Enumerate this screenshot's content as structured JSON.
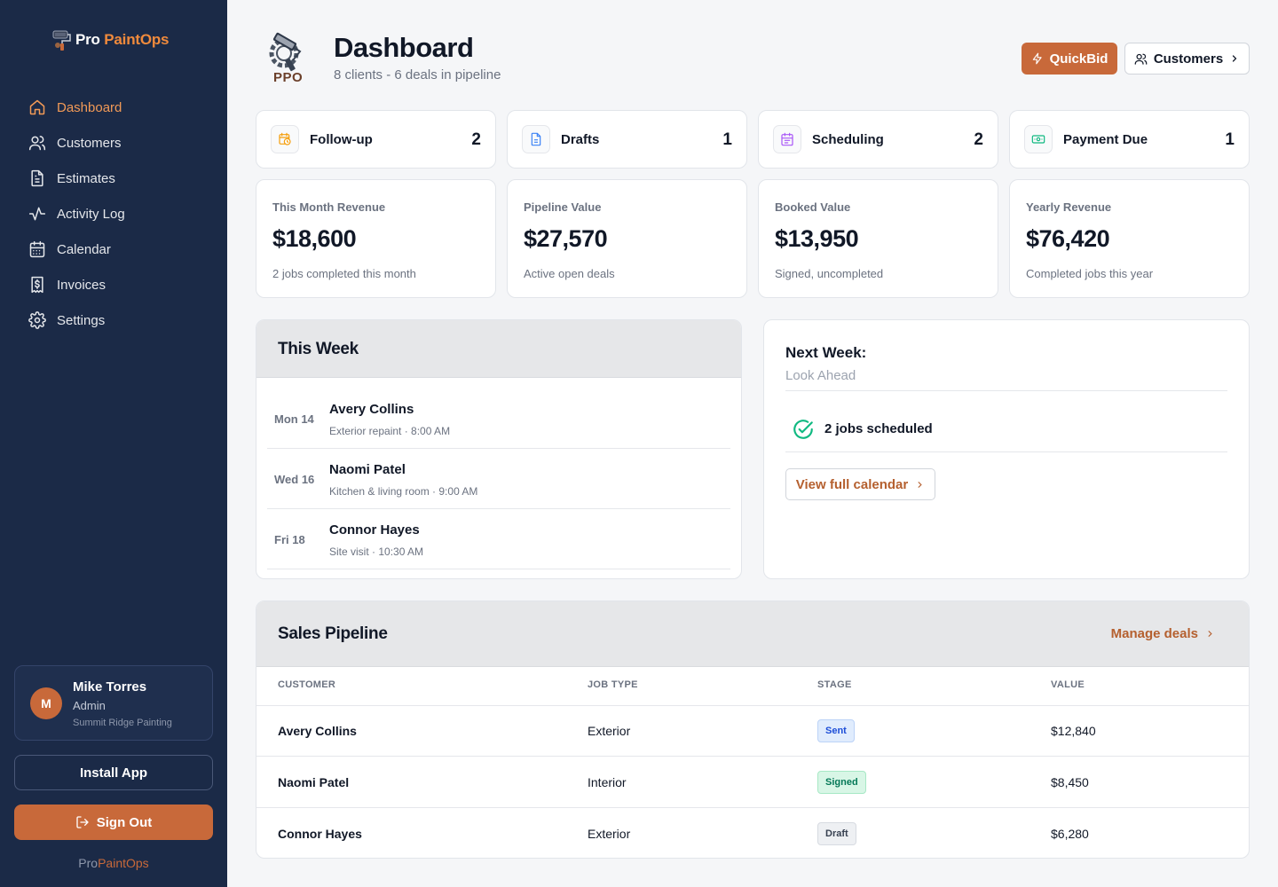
{
  "brand": {
    "name_prefix": "Pro",
    "name_accent": "PaintOps",
    "header_logo_text": "PPO"
  },
  "colors": {
    "sidebar": "#1b2a47",
    "accent": "#c8693a",
    "accent_text": "#f29a57"
  },
  "sidebar": {
    "items": [
      {
        "label": "Dashboard",
        "icon": "home-icon",
        "active": true
      },
      {
        "label": "Customers",
        "icon": "users-icon"
      },
      {
        "label": "Estimates",
        "icon": "document-icon"
      },
      {
        "label": "Activity Log",
        "icon": "activity-icon"
      },
      {
        "label": "Calendar",
        "icon": "calendar-icon"
      },
      {
        "label": "Invoices",
        "icon": "invoice-dollar-icon"
      },
      {
        "label": "Settings",
        "icon": "gear-icon"
      }
    ],
    "user": {
      "initial": "M",
      "name": "Mike Torres",
      "role": "Admin",
      "company": "Summit Ridge Painting"
    },
    "install_label": "Install App",
    "signout_label": "Sign Out"
  },
  "header": {
    "title": "Dashboard",
    "subtitle": "8 clients - 6 deals in pipeline",
    "quickbid_label": "QuickBid",
    "customers_label": "Customers"
  },
  "status_cards": [
    {
      "label": "Follow-up",
      "count": "2",
      "icon": "clock-calendar-icon"
    },
    {
      "label": "Drafts",
      "count": "1",
      "icon": "document-icon"
    },
    {
      "label": "Scheduling",
      "count": "2",
      "icon": "calendar-icon"
    },
    {
      "label": "Payment Due",
      "count": "1",
      "icon": "cash-icon"
    }
  ],
  "stats": [
    {
      "label": "This Month Revenue",
      "value": "$18,600",
      "note": "2 jobs completed this month"
    },
    {
      "label": "Pipeline Value",
      "value": "$27,570",
      "note": "Active open deals"
    },
    {
      "label": "Booked Value",
      "value": "$13,950",
      "note": "Signed, uncompleted"
    },
    {
      "label": "Yearly Revenue",
      "value": "$76,420",
      "note": "Completed jobs this year"
    }
  ],
  "this_week": {
    "title": "This Week",
    "rows": [
      {
        "day": "Mon 14",
        "name": "Avery Collins",
        "detail": "Exterior repaint · 8:00 AM"
      },
      {
        "day": "Wed 16",
        "name": "Naomi Patel",
        "detail": "Kitchen & living room · 9:00 AM"
      },
      {
        "day": "Fri 18",
        "name": "Connor Hayes",
        "detail": "Site visit · 10:30 AM"
      }
    ]
  },
  "next_week": {
    "title": "Next Week:",
    "subtitle": "Look Ahead",
    "count_text": "2 jobs scheduled",
    "link_label": "View full calendar"
  },
  "pipeline": {
    "title": "Sales Pipeline",
    "manage_label": "Manage deals",
    "columns": [
      "CUSTOMER",
      "JOB TYPE",
      "STAGE",
      "VALUE"
    ],
    "rows": [
      {
        "customer": "Avery Collins",
        "job_type": "Exterior",
        "stage": "Sent",
        "value": "$12,840"
      },
      {
        "customer": "Naomi Patel",
        "job_type": "Interior",
        "stage": "Signed",
        "value": "$8,450"
      },
      {
        "customer": "Connor Hayes",
        "job_type": "Exterior",
        "stage": "Draft",
        "value": "$6,280"
      }
    ]
  }
}
